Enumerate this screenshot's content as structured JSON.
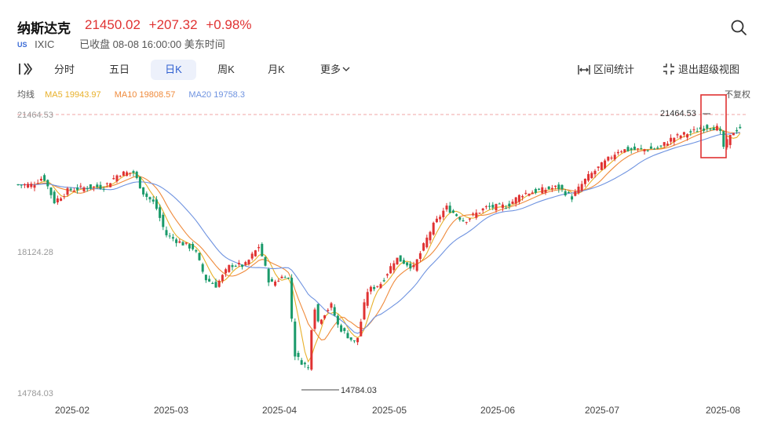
{
  "header": {
    "title": "纳斯达克",
    "price": "21450.02",
    "change": "+207.32",
    "change_pct": "+0.98%",
    "market_badge": "US",
    "code": "IXIC",
    "status": "已收盘 08-08 16:00:00 美东时间",
    "price_color": "#e03232"
  },
  "tabs": {
    "items": [
      {
        "label": "分时"
      },
      {
        "label": "五日"
      },
      {
        "label": "日K"
      },
      {
        "label": "周K"
      },
      {
        "label": "月K"
      }
    ],
    "active": "日K",
    "more_label": "更多",
    "range_stats_label": "区间统计",
    "exit_label": "退出超级视图"
  },
  "ma": {
    "label": "均线",
    "ma5": "MA5 19943.97",
    "ma10": "MA10 19808.57",
    "ma20": "MA20 19758.3",
    "ma5_color": "#e8b02a",
    "ma10_color": "#ef8a3b",
    "ma20_color": "#6f93e0",
    "adjust_label": "不复权"
  },
  "chart_data": {
    "type": "candlestick",
    "y_ticks": [
      "21464.53",
      "18124.28",
      "14784.03"
    ],
    "ylim": [
      14784.03,
      21464.53
    ],
    "x_ticks": [
      "2025-02",
      "2025-03",
      "2025-04",
      "2025-05",
      "2025-06",
      "2025-07",
      "2025-08"
    ],
    "high_label": "21464.53",
    "low_label": "14784.03",
    "up_color": "#e03232",
    "down_color": "#1a9a6a",
    "close_path": [
      [
        "2025-01-21",
        19756
      ],
      [
        "2025-01-24",
        19955
      ],
      [
        "2025-01-27",
        19341
      ],
      [
        "2025-01-31",
        19627
      ],
      [
        "2025-02-05",
        19692
      ],
      [
        "2025-02-10",
        19714
      ],
      [
        "2025-02-14",
        20027
      ],
      [
        "2025-02-18",
        20056
      ],
      [
        "2025-02-21",
        19524
      ],
      [
        "2025-02-24",
        19286
      ],
      [
        "2025-02-27",
        18544
      ],
      [
        "2025-03-03",
        18350
      ],
      [
        "2025-03-07",
        18196
      ],
      [
        "2025-03-10",
        17468
      ],
      [
        "2025-03-13",
        17303
      ],
      [
        "2025-03-17",
        17809
      ],
      [
        "2025-03-21",
        17784
      ],
      [
        "2025-03-25",
        18272
      ],
      [
        "2025-03-28",
        17323
      ],
      [
        "2025-04-02",
        17601
      ],
      [
        "2025-04-03",
        16551
      ],
      [
        "2025-04-04",
        15588
      ],
      [
        "2025-04-08",
        15268
      ],
      [
        "2025-04-09",
        17125
      ],
      [
        "2025-04-10",
        16387
      ],
      [
        "2025-04-14",
        16831
      ],
      [
        "2025-04-16",
        16307
      ],
      [
        "2025-04-21",
        15870
      ],
      [
        "2025-04-24",
        17166
      ],
      [
        "2025-04-28",
        17366
      ],
      [
        "2025-05-02",
        17977
      ],
      [
        "2025-05-07",
        17738
      ],
      [
        "2025-05-12",
        18708
      ],
      [
        "2025-05-16",
        19211
      ],
      [
        "2025-05-21",
        18873
      ],
      [
        "2025-05-27",
        19199
      ],
      [
        "2025-06-02",
        19243
      ],
      [
        "2025-06-06",
        19530
      ],
      [
        "2025-06-11",
        19615
      ],
      [
        "2025-06-16",
        19701
      ],
      [
        "2025-06-20",
        19447
      ],
      [
        "2025-06-24",
        19912
      ],
      [
        "2025-06-30",
        20369
      ],
      [
        "2025-07-03",
        20601
      ],
      [
        "2025-07-09",
        20611
      ],
      [
        "2025-07-14",
        20640
      ],
      [
        "2025-07-18",
        20896
      ],
      [
        "2025-07-24",
        21058
      ],
      [
        "2025-07-28",
        21178
      ],
      [
        "2025-07-31",
        21122
      ],
      [
        "2025-08-01",
        20650
      ],
      [
        "2025-08-04",
        21053
      ],
      [
        "2025-08-06",
        21169
      ],
      [
        "2025-08-08",
        21450
      ]
    ]
  }
}
